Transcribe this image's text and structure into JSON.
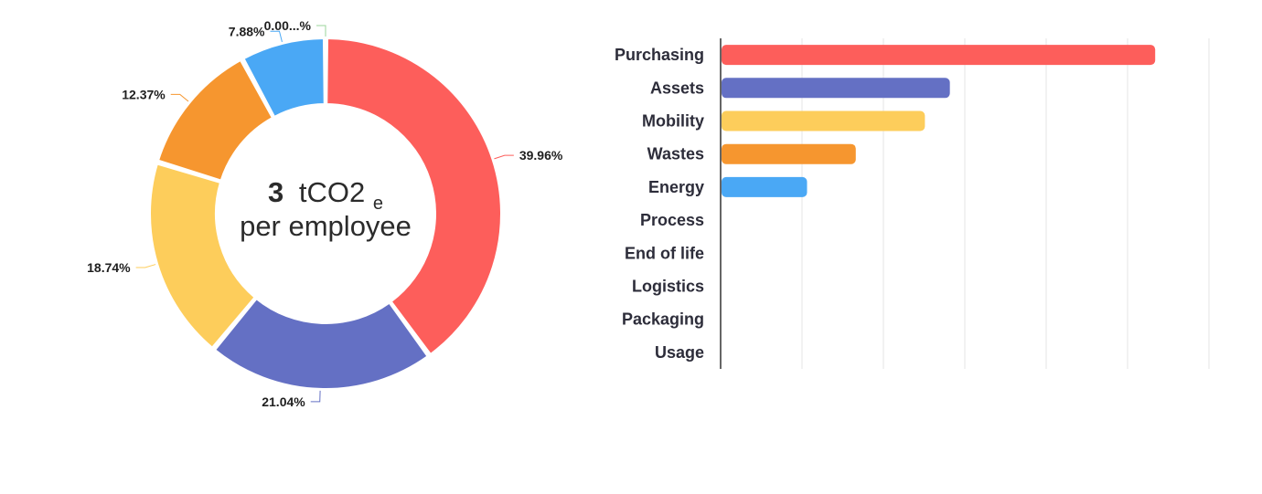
{
  "chart_data": [
    {
      "type": "donut",
      "center_text": {
        "value": "3",
        "unit_main": "tCO2",
        "unit_sub": "e",
        "line2": "per employee"
      },
      "slices": [
        {
          "category": "Purchasing",
          "value": 39.96,
          "label": "39.96%",
          "color": "#fd5e5b"
        },
        {
          "category": "Assets",
          "value": 21.04,
          "label": "21.04%",
          "color": "#6470c4"
        },
        {
          "category": "Mobility",
          "value": 18.74,
          "label": "18.74%",
          "color": "#fdcd5b"
        },
        {
          "category": "Wastes",
          "value": 12.37,
          "label": "12.37%",
          "color": "#f6962f"
        },
        {
          "category": "Energy",
          "value": 7.88,
          "label": "7.88%",
          "color": "#4aa8f5"
        },
        {
          "category": "Process",
          "value": 0.001,
          "label": "0.00...%",
          "color": "#9bd49b"
        }
      ]
    },
    {
      "type": "bar",
      "orientation": "horizontal",
      "categories": [
        "Purchasing",
        "Assets",
        "Mobility",
        "Wastes",
        "Energy",
        "Process",
        "End of life",
        "Logistics",
        "Packaging",
        "Usage"
      ],
      "values": [
        39.96,
        21.04,
        18.74,
        12.37,
        7.88,
        0,
        0,
        0,
        0,
        0
      ],
      "colors": [
        "#fd5e5b",
        "#6470c4",
        "#fdcd5b",
        "#f6962f",
        "#4aa8f5",
        "#9bd49b",
        "#cccccc",
        "#cccccc",
        "#cccccc",
        "#cccccc"
      ],
      "xlim": [
        0,
        45
      ],
      "grid": true,
      "tick_labels_shown": false
    }
  ]
}
